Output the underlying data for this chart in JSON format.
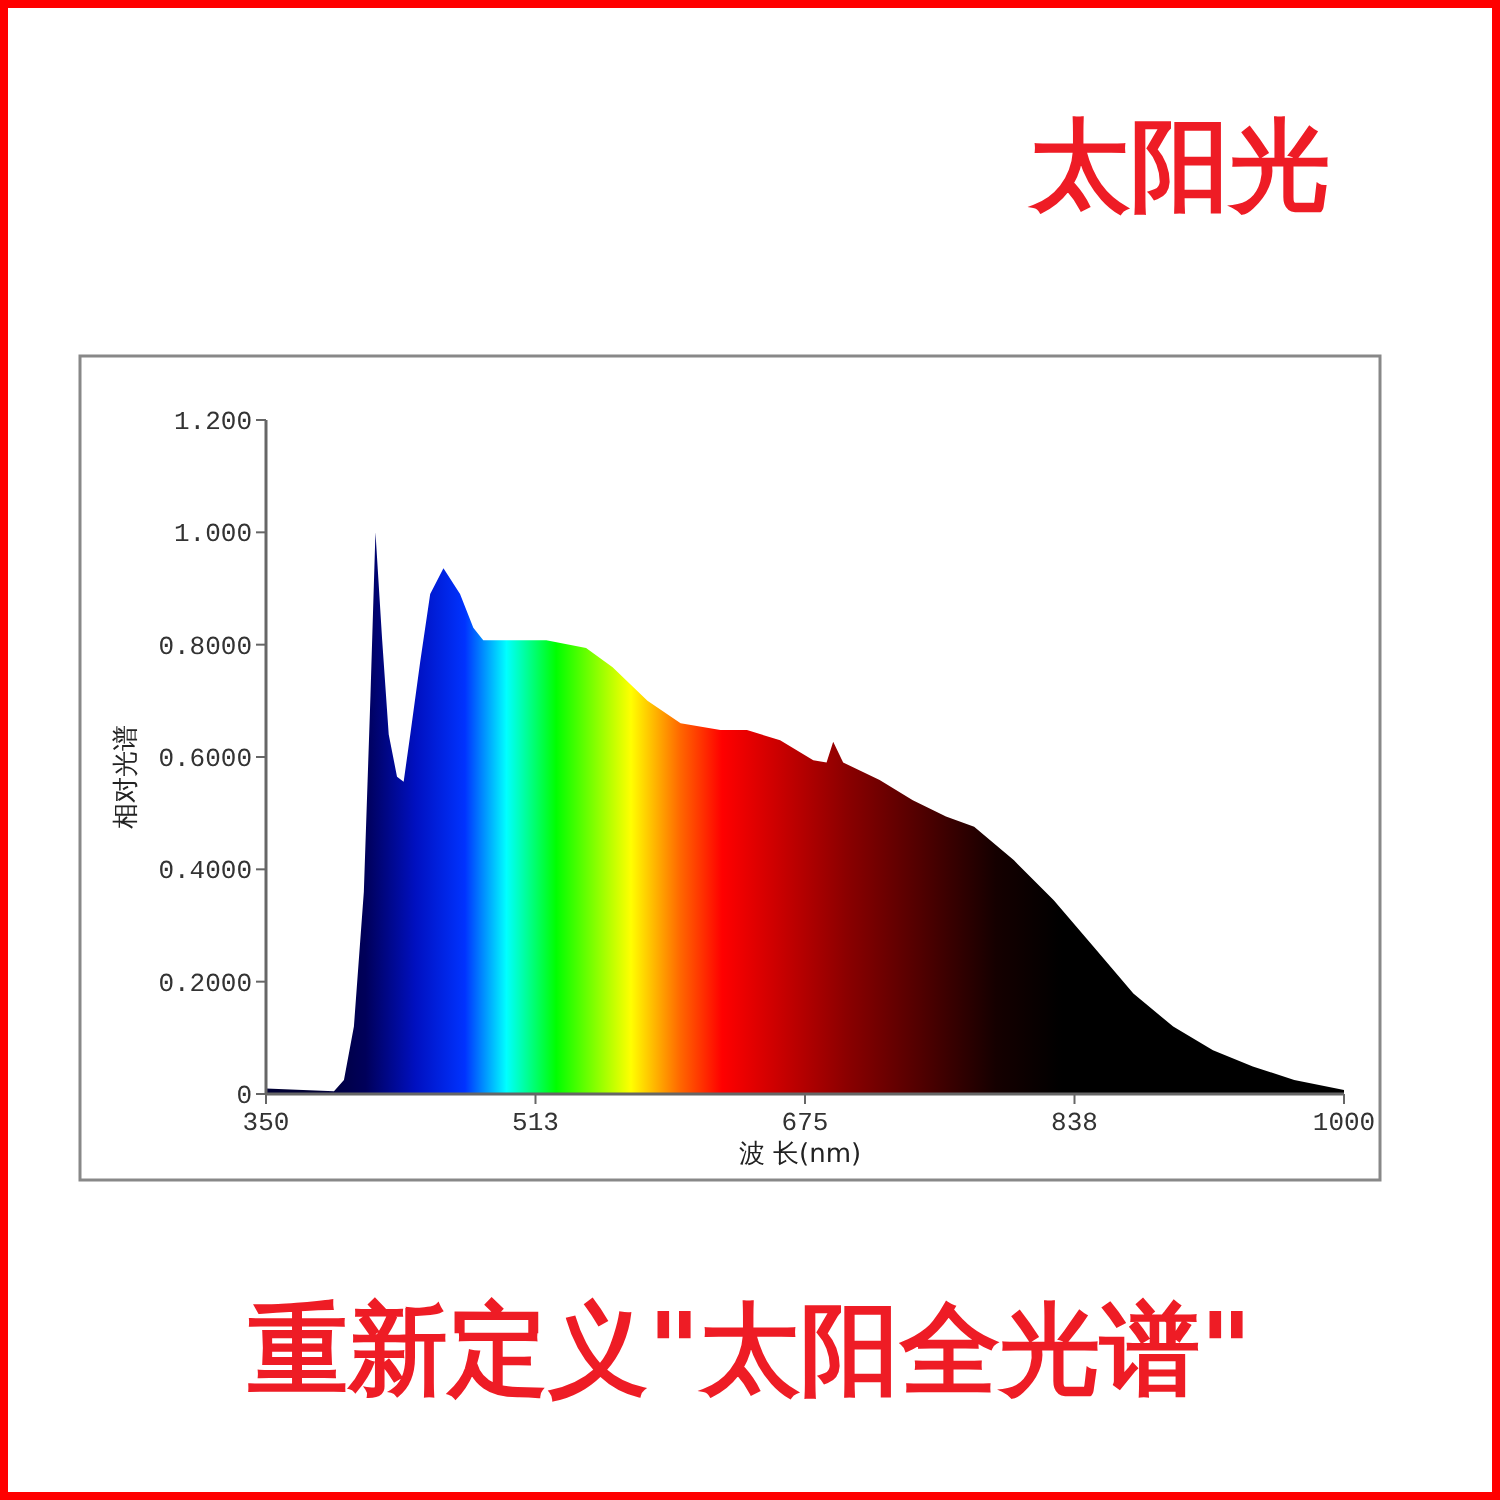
{
  "chart_data": {
    "type": "area",
    "title": "太阳光",
    "xlabel": "波 长(nm)",
    "ylabel": "相对光谱",
    "annotations": [
      "重新定义\"太阳全光谱\""
    ],
    "x": [
      350,
      391,
      397,
      403,
      409,
      413,
      416,
      420,
      424,
      429,
      433,
      437,
      443,
      449,
      457,
      467,
      475,
      481,
      499,
      519,
      543,
      559,
      580,
      600,
      624,
      640,
      660,
      680,
      688,
      692,
      698,
      720,
      740,
      760,
      777,
      801,
      825,
      849,
      873,
      897,
      921,
      945,
      970,
      1000
    ],
    "values": [
      0.01,
      0.005,
      0.025,
      0.12,
      0.36,
      0.71,
      1.0,
      0.81,
      0.64,
      0.565,
      0.556,
      0.64,
      0.77,
      0.89,
      0.936,
      0.89,
      0.83,
      0.808,
      0.808,
      0.808,
      0.794,
      0.76,
      0.7,
      0.66,
      0.648,
      0.648,
      0.63,
      0.594,
      0.59,
      0.627,
      0.59,
      0.559,
      0.523,
      0.494,
      0.476,
      0.416,
      0.345,
      0.262,
      0.179,
      0.12,
      0.078,
      0.049,
      0.025,
      0.007
    ],
    "xlim": [
      350,
      1000
    ],
    "xticks": [
      350,
      {
        "value": 512.5,
        "label": "513"
      },
      675,
      {
        "value": 837.5,
        "label": "838"
      },
      1000
    ],
    "ylim": [
      0,
      1.2
    ],
    "yticks": [
      0,
      {
        "value": 0.2,
        "label": "0.2000"
      },
      {
        "value": 0.4,
        "label": "0.4000"
      },
      {
        "value": 0.6,
        "label": "0.6000"
      },
      {
        "value": 0.8,
        "label": "0.8000"
      },
      {
        "value": 1.0,
        "label": "1.000"
      },
      {
        "value": 1.2,
        "label": "1.200"
      }
    ]
  }
}
